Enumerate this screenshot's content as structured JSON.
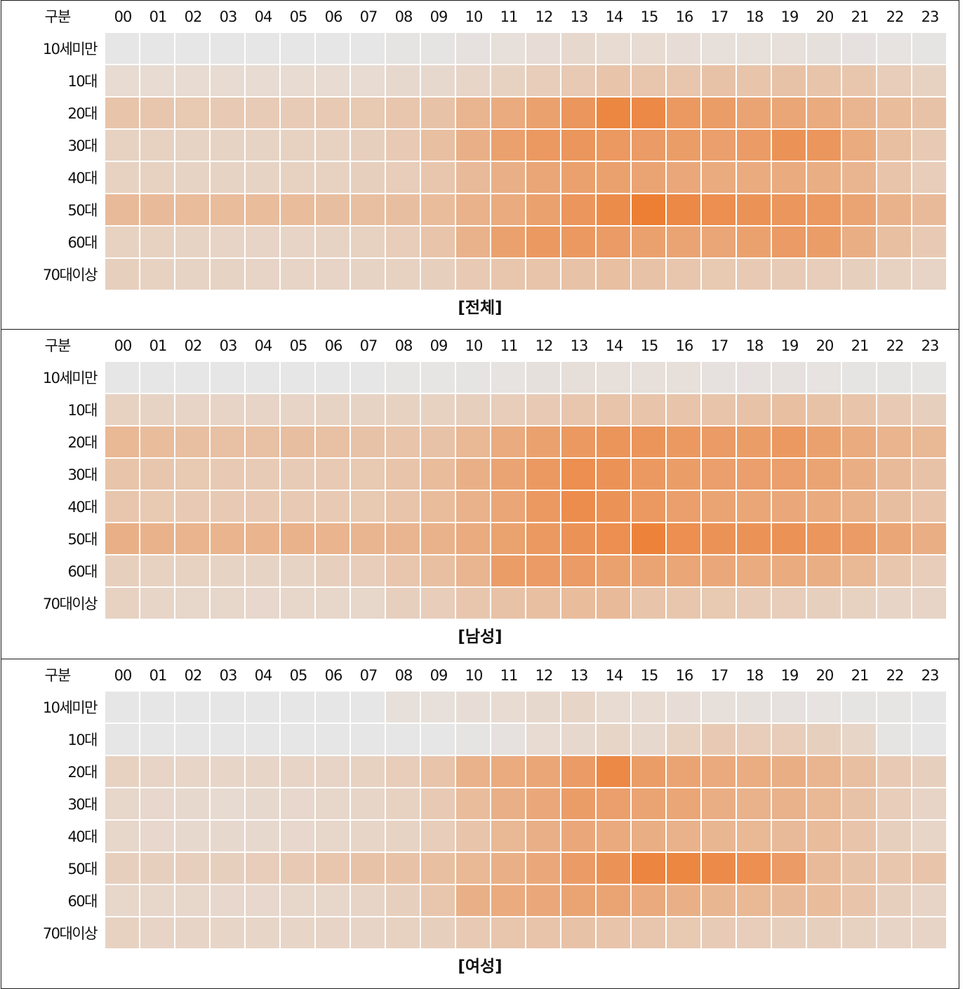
{
  "chart_data": [
    {
      "type": "heatmap",
      "title": "[전체]",
      "corner_label": "구분",
      "x": [
        "00",
        "01",
        "02",
        "03",
        "04",
        "05",
        "06",
        "07",
        "08",
        "09",
        "10",
        "11",
        "12",
        "13",
        "14",
        "15",
        "16",
        "17",
        "18",
        "19",
        "20",
        "21",
        "22",
        "23"
      ],
      "y": [
        "10세미만",
        "10대",
        "20대",
        "30대",
        "40대",
        "50대",
        "60대",
        "70대이상"
      ],
      "scale": "0-100 relative intensity",
      "values": [
        [
          0,
          0,
          0,
          0,
          0,
          0,
          0,
          0,
          2,
          2,
          4,
          6,
          8,
          12,
          10,
          10,
          8,
          6,
          6,
          6,
          5,
          4,
          3,
          2
        ],
        [
          10,
          10,
          10,
          10,
          10,
          10,
          10,
          10,
          12,
          12,
          15,
          18,
          22,
          25,
          30,
          28,
          28,
          32,
          30,
          32,
          30,
          28,
          22,
          18
        ],
        [
          30,
          28,
          26,
          25,
          24,
          24,
          25,
          26,
          28,
          32,
          45,
          55,
          65,
          75,
          90,
          88,
          72,
          68,
          62,
          60,
          55,
          45,
          38,
          32
        ],
        [
          18,
          18,
          17,
          17,
          17,
          18,
          18,
          20,
          25,
          35,
          50,
          65,
          72,
          75,
          72,
          70,
          68,
          66,
          70,
          78,
          75,
          55,
          35,
          25
        ],
        [
          18,
          18,
          17,
          17,
          17,
          18,
          18,
          20,
          22,
          28,
          40,
          50,
          60,
          65,
          65,
          62,
          58,
          55,
          55,
          55,
          52,
          45,
          30,
          22
        ],
        [
          40,
          40,
          38,
          38,
          38,
          38,
          36,
          35,
          36,
          38,
          48,
          55,
          65,
          75,
          85,
          98,
          88,
          82,
          78,
          75,
          72,
          62,
          48,
          40
        ],
        [
          18,
          18,
          17,
          16,
          16,
          16,
          17,
          18,
          22,
          30,
          48,
          65,
          72,
          72,
          70,
          65,
          62,
          60,
          65,
          70,
          68,
          52,
          35,
          25
        ],
        [
          20,
          18,
          17,
          17,
          16,
          16,
          16,
          17,
          18,
          20,
          25,
          28,
          30,
          32,
          35,
          32,
          28,
          26,
          25,
          24,
          22,
          20,
          18,
          16
        ]
      ]
    },
    {
      "type": "heatmap",
      "title": "[남성]",
      "corner_label": "구분",
      "x": [
        "00",
        "01",
        "02",
        "03",
        "04",
        "05",
        "06",
        "07",
        "08",
        "09",
        "10",
        "11",
        "12",
        "13",
        "14",
        "15",
        "16",
        "17",
        "18",
        "19",
        "20",
        "21",
        "22",
        "23"
      ],
      "y": [
        "10세미만",
        "10대",
        "20대",
        "30대",
        "40대",
        "50대",
        "60대",
        "70대이상"
      ],
      "scale": "0-100 relative intensity",
      "values": [
        [
          0,
          0,
          0,
          0,
          0,
          0,
          0,
          0,
          1,
          1,
          2,
          3,
          5,
          7,
          6,
          6,
          6,
          4,
          4,
          4,
          3,
          2,
          2,
          1
        ],
        [
          18,
          17,
          16,
          16,
          16,
          16,
          17,
          17,
          18,
          18,
          20,
          22,
          25,
          28,
          30,
          30,
          30,
          30,
          32,
          35,
          32,
          30,
          25,
          20
        ],
        [
          42,
          38,
          35,
          34,
          34,
          36,
          34,
          32,
          30,
          32,
          42,
          55,
          65,
          72,
          76,
          76,
          72,
          70,
          68,
          72,
          65,
          55,
          46,
          42
        ],
        [
          30,
          28,
          26,
          25,
          24,
          24,
          25,
          26,
          30,
          38,
          50,
          62,
          72,
          82,
          78,
          72,
          68,
          66,
          66,
          66,
          62,
          52,
          40,
          32
        ],
        [
          28,
          26,
          25,
          25,
          25,
          25,
          25,
          26,
          30,
          38,
          48,
          60,
          72,
          84,
          78,
          72,
          66,
          62,
          60,
          58,
          55,
          48,
          36,
          30
        ],
        [
          50,
          48,
          46,
          46,
          46,
          48,
          46,
          45,
          45,
          48,
          55,
          64,
          72,
          78,
          82,
          94,
          82,
          78,
          78,
          78,
          75,
          70,
          60,
          52
        ],
        [
          20,
          18,
          18,
          17,
          17,
          17,
          20,
          22,
          28,
          35,
          45,
          68,
          70,
          70,
          65,
          62,
          60,
          58,
          55,
          55,
          52,
          42,
          28,
          22
        ],
        [
          18,
          15,
          14,
          14,
          13,
          14,
          14,
          14,
          20,
          22,
          28,
          32,
          35,
          38,
          40,
          30,
          28,
          26,
          24,
          22,
          20,
          18,
          16,
          16
        ]
      ]
    },
    {
      "type": "heatmap",
      "title": "[여성]",
      "corner_label": "구분",
      "x": [
        "00",
        "01",
        "02",
        "03",
        "04",
        "05",
        "06",
        "07",
        "08",
        "09",
        "10",
        "11",
        "12",
        "13",
        "14",
        "15",
        "16",
        "17",
        "18",
        "19",
        "20",
        "21",
        "22",
        "23"
      ],
      "y": [
        "10세미만",
        "10대",
        "20대",
        "30대",
        "40대",
        "50대",
        "60대",
        "70대이상"
      ],
      "scale": "0-100 relative intensity",
      "values": [
        [
          0,
          0,
          0,
          0,
          0,
          0,
          0,
          0,
          6,
          6,
          8,
          10,
          12,
          15,
          10,
          10,
          8,
          6,
          5,
          4,
          3,
          2,
          1,
          0
        ],
        [
          0,
          0,
          0,
          0,
          0,
          0,
          0,
          0,
          0,
          0,
          2,
          4,
          10,
          12,
          15,
          12,
          18,
          25,
          22,
          22,
          20,
          15,
          2,
          0
        ],
        [
          18,
          16,
          15,
          15,
          15,
          16,
          16,
          18,
          22,
          30,
          48,
          55,
          60,
          70,
          88,
          68,
          62,
          56,
          54,
          52,
          45,
          35,
          25,
          20
        ],
        [
          14,
          13,
          12,
          11,
          12,
          13,
          14,
          15,
          18,
          25,
          38,
          50,
          58,
          68,
          66,
          62,
          60,
          52,
          48,
          48,
          42,
          32,
          22,
          16
        ],
        [
          14,
          13,
          12,
          12,
          12,
          13,
          14,
          15,
          17,
          22,
          30,
          42,
          50,
          58,
          56,
          52,
          48,
          44,
          42,
          40,
          38,
          30,
          20,
          15
        ],
        [
          20,
          20,
          20,
          20,
          22,
          25,
          28,
          32,
          32,
          35,
          42,
          50,
          58,
          70,
          78,
          92,
          90,
          86,
          82,
          70,
          40,
          32,
          28,
          30
        ],
        [
          14,
          14,
          14,
          13,
          13,
          14,
          14,
          16,
          20,
          28,
          50,
          55,
          58,
          62,
          62,
          56,
          50,
          44,
          42,
          40,
          38,
          30,
          20,
          16
        ],
        [
          18,
          16,
          16,
          15,
          15,
          15,
          16,
          16,
          18,
          20,
          25,
          28,
          30,
          32,
          30,
          28,
          26,
          24,
          22,
          20,
          20,
          18,
          16,
          16
        ]
      ]
    }
  ]
}
